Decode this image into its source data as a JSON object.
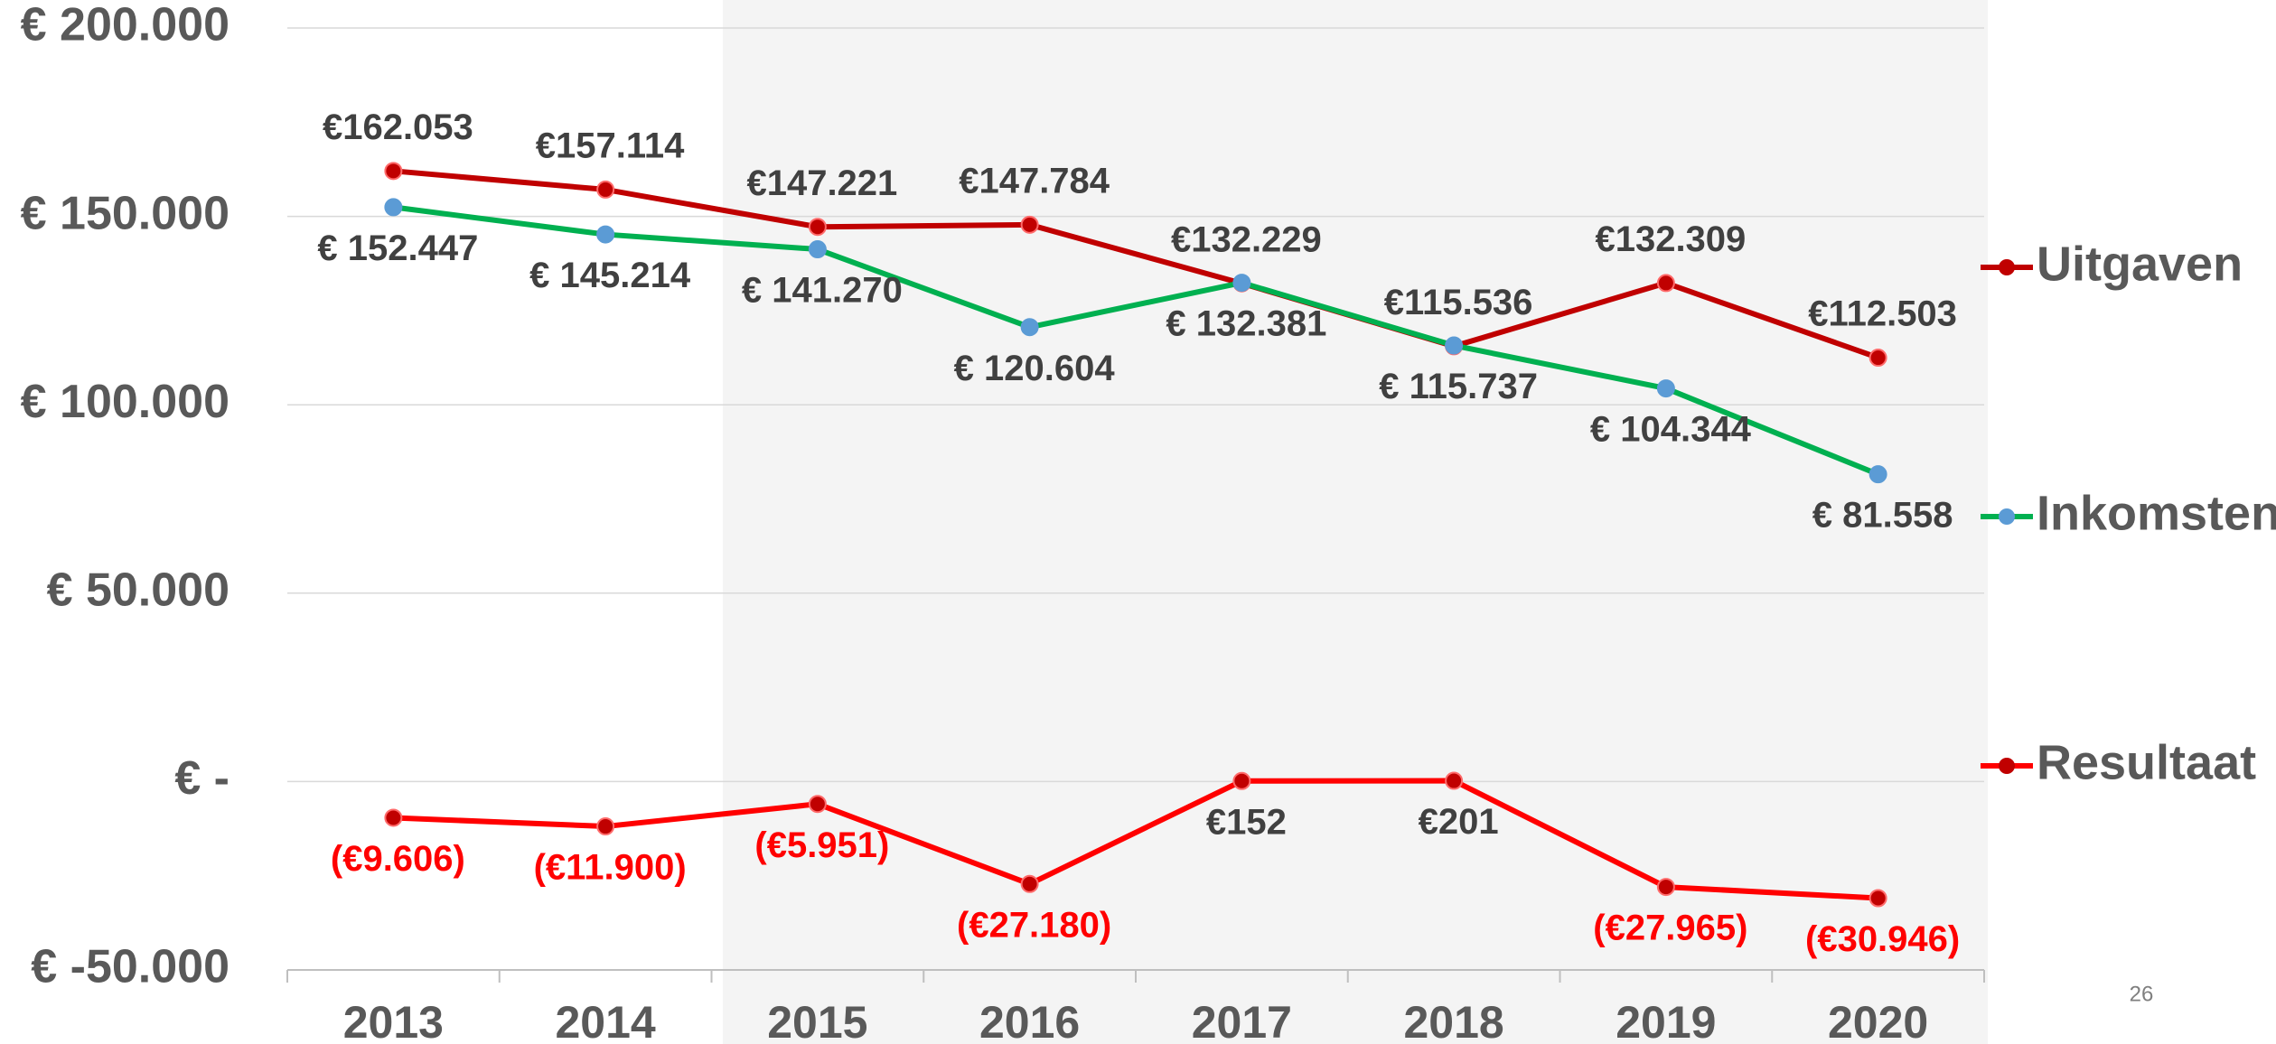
{
  "chart_data": {
    "type": "line",
    "categories": [
      "2013",
      "2014",
      "2015",
      "2016",
      "2017",
      "2018",
      "2019",
      "2020"
    ],
    "series": [
      {
        "name": "Uitgaven",
        "color": "#c00000",
        "marker_color": "#c00000",
        "values": [
          162053,
          157114,
          147221,
          147784,
          132229,
          115536,
          132309,
          112503
        ],
        "value_labels": [
          "€162.053",
          "€157.114",
          "€147.221",
          "€147.784",
          "€132.229",
          "€115.536",
          "€132.309",
          "€112.503"
        ]
      },
      {
        "name": "Inkomsten",
        "color": "#00b050",
        "marker_color": "#5b9bd5",
        "values": [
          152447,
          145214,
          141270,
          120604,
          132381,
          115737,
          104344,
          81558
        ],
        "value_labels": [
          "€ 152.447",
          "€ 145.214",
          "€ 141.270",
          "€ 120.604",
          "€ 132.381",
          "€ 115.737",
          "€ 104.344",
          "€ 81.558"
        ]
      },
      {
        "name": "Resultaat",
        "color": "#ff0000",
        "marker_color": "#c00000",
        "values": [
          -9606,
          -11900,
          -5951,
          -27180,
          152,
          201,
          -27965,
          -30946
        ],
        "value_labels": [
          "(€9.606)",
          "(€11.900)",
          "(€5.951)",
          "(€27.180)",
          "€152",
          "€201",
          "(€27.965)",
          "(€30.946)"
        ]
      }
    ],
    "ylim": [
      -50000,
      200000
    ],
    "yticks": [
      {
        "value": -50000,
        "label": "€ -50.000"
      },
      {
        "value": 0,
        "label": "€ -"
      },
      {
        "value": 50000,
        "label": "€ 50.000"
      },
      {
        "value": 100000,
        "label": "€ 100.000"
      },
      {
        "value": 150000,
        "label": "€ 150.000"
      },
      {
        "value": 200000,
        "label": "€ 200.000"
      }
    ],
    "grid": true,
    "legend": "right"
  },
  "slide_number": "26"
}
